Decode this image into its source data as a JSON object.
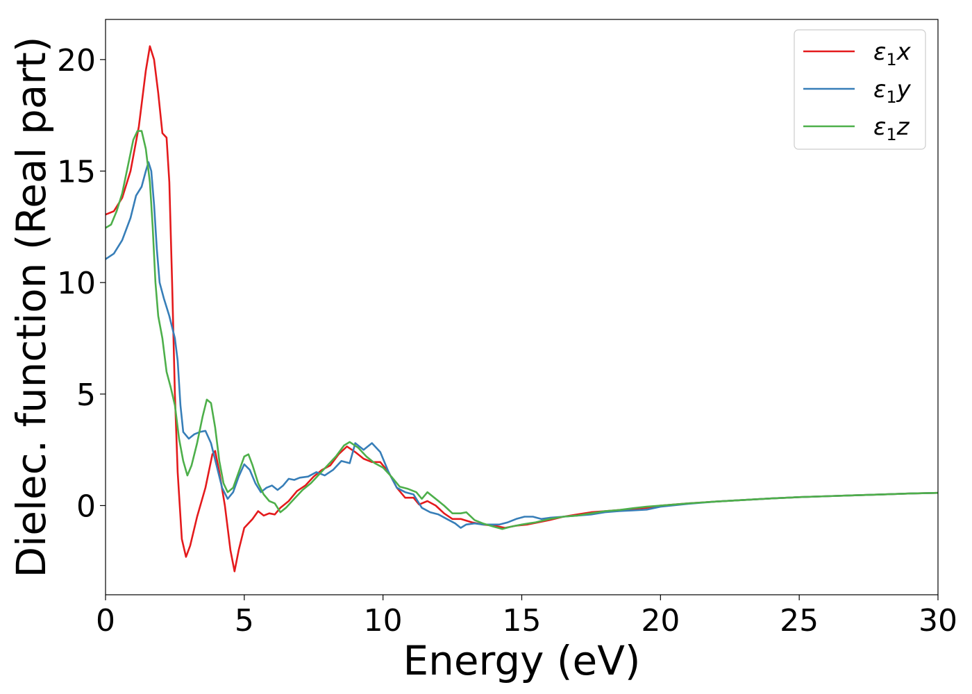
{
  "chart_data": {
    "type": "line",
    "title": "",
    "xlabel": "Energy (eV)",
    "ylabel": "Dielec. function (Real part)",
    "xlim": [
      0,
      30
    ],
    "ylim": [
      -4.0,
      21.8
    ],
    "xticks": [
      0,
      5,
      10,
      15,
      20,
      25,
      30
    ],
    "yticks": [
      0,
      5,
      10,
      15,
      20
    ],
    "grid": false,
    "legend_position": "top-right",
    "series": [
      {
        "name": "ε₁x",
        "legend_main": "ε",
        "legend_sub": "1",
        "legend_var": "x",
        "color": "#e41a1c",
        "points": [
          [
            0,
            13.05
          ],
          [
            0.3,
            13.2
          ],
          [
            0.6,
            13.8
          ],
          [
            0.9,
            15.0
          ],
          [
            1.2,
            17.0
          ],
          [
            1.45,
            19.5
          ],
          [
            1.6,
            20.6
          ],
          [
            1.75,
            20.0
          ],
          [
            1.9,
            18.5
          ],
          [
            2.05,
            16.7
          ],
          [
            2.2,
            16.5
          ],
          [
            2.3,
            14.5
          ],
          [
            2.4,
            10.0
          ],
          [
            2.5,
            5.0
          ],
          [
            2.6,
            1.5
          ],
          [
            2.75,
            -1.5
          ],
          [
            2.9,
            -2.3
          ],
          [
            3.05,
            -1.8
          ],
          [
            3.3,
            -0.5
          ],
          [
            3.6,
            0.8
          ],
          [
            3.85,
            2.3
          ],
          [
            3.95,
            2.45
          ],
          [
            4.1,
            1.5
          ],
          [
            4.3,
            0.0
          ],
          [
            4.5,
            -2.0
          ],
          [
            4.65,
            -2.95
          ],
          [
            4.8,
            -2.0
          ],
          [
            5.0,
            -1.0
          ],
          [
            5.3,
            -0.6
          ],
          [
            5.5,
            -0.25
          ],
          [
            5.7,
            -0.45
          ],
          [
            5.9,
            -0.35
          ],
          [
            6.1,
            -0.4
          ],
          [
            6.3,
            -0.1
          ],
          [
            6.6,
            0.2
          ],
          [
            6.9,
            0.65
          ],
          [
            7.2,
            0.9
          ],
          [
            7.5,
            1.3
          ],
          [
            7.8,
            1.6
          ],
          [
            8.1,
            1.8
          ],
          [
            8.4,
            2.3
          ],
          [
            8.7,
            2.65
          ],
          [
            9.0,
            2.4
          ],
          [
            9.3,
            2.1
          ],
          [
            9.6,
            1.95
          ],
          [
            9.9,
            1.95
          ],
          [
            10.2,
            1.5
          ],
          [
            10.5,
            0.8
          ],
          [
            10.8,
            0.35
          ],
          [
            11.1,
            0.35
          ],
          [
            11.3,
            0.05
          ],
          [
            11.6,
            0.2
          ],
          [
            11.9,
            0.0
          ],
          [
            12.2,
            -0.35
          ],
          [
            12.5,
            -0.6
          ],
          [
            12.8,
            -0.6
          ],
          [
            13.2,
            -0.75
          ],
          [
            13.6,
            -0.85
          ],
          [
            14.0,
            -0.9
          ],
          [
            14.4,
            -1.0
          ],
          [
            14.8,
            -0.9
          ],
          [
            15.2,
            -0.85
          ],
          [
            15.6,
            -0.75
          ],
          [
            16.0,
            -0.65
          ],
          [
            16.5,
            -0.5
          ],
          [
            17.0,
            -0.4
          ],
          [
            17.5,
            -0.3
          ],
          [
            18,
            -0.25
          ],
          [
            18.5,
            -0.2
          ],
          [
            19,
            -0.15
          ],
          [
            19.5,
            -0.1
          ],
          [
            20,
            0.0
          ],
          [
            21,
            0.1
          ],
          [
            22,
            0.18
          ],
          [
            23,
            0.25
          ],
          [
            24,
            0.32
          ],
          [
            25,
            0.38
          ],
          [
            26,
            0.42
          ],
          [
            27,
            0.46
          ],
          [
            28,
            0.5
          ],
          [
            29,
            0.54
          ],
          [
            30,
            0.57
          ]
        ]
      },
      {
        "name": "ε₁y",
        "legend_main": "ε",
        "legend_sub": "1",
        "legend_var": "y",
        "color": "#377eb8",
        "points": [
          [
            0,
            11.05
          ],
          [
            0.3,
            11.3
          ],
          [
            0.6,
            11.9
          ],
          [
            0.9,
            12.9
          ],
          [
            1.1,
            13.9
          ],
          [
            1.3,
            14.3
          ],
          [
            1.45,
            15.0
          ],
          [
            1.55,
            15.4
          ],
          [
            1.65,
            15.0
          ],
          [
            1.75,
            13.5
          ],
          [
            1.85,
            11.5
          ],
          [
            1.95,
            10.0
          ],
          [
            2.1,
            9.3
          ],
          [
            2.3,
            8.5
          ],
          [
            2.5,
            7.5
          ],
          [
            2.6,
            6.5
          ],
          [
            2.7,
            4.5
          ],
          [
            2.8,
            3.3
          ],
          [
            3.0,
            3.0
          ],
          [
            3.2,
            3.2
          ],
          [
            3.4,
            3.3
          ],
          [
            3.6,
            3.35
          ],
          [
            3.8,
            2.8
          ],
          [
            4.0,
            1.8
          ],
          [
            4.2,
            0.8
          ],
          [
            4.4,
            0.3
          ],
          [
            4.6,
            0.6
          ],
          [
            4.8,
            1.3
          ],
          [
            5.0,
            1.85
          ],
          [
            5.2,
            1.6
          ],
          [
            5.4,
            1.0
          ],
          [
            5.6,
            0.6
          ],
          [
            5.8,
            0.8
          ],
          [
            6.0,
            0.9
          ],
          [
            6.2,
            0.7
          ],
          [
            6.4,
            0.9
          ],
          [
            6.6,
            1.2
          ],
          [
            6.8,
            1.15
          ],
          [
            7.0,
            1.25
          ],
          [
            7.3,
            1.3
          ],
          [
            7.6,
            1.5
          ],
          [
            7.9,
            1.35
          ],
          [
            8.2,
            1.6
          ],
          [
            8.5,
            2.0
          ],
          [
            8.8,
            1.9
          ],
          [
            9.0,
            2.8
          ],
          [
            9.3,
            2.5
          ],
          [
            9.6,
            2.8
          ],
          [
            9.9,
            2.4
          ],
          [
            10.2,
            1.5
          ],
          [
            10.5,
            0.8
          ],
          [
            10.8,
            0.6
          ],
          [
            11.1,
            0.5
          ],
          [
            11.4,
            -0.1
          ],
          [
            11.7,
            -0.3
          ],
          [
            12.0,
            -0.4
          ],
          [
            12.3,
            -0.6
          ],
          [
            12.6,
            -0.8
          ],
          [
            12.8,
            -1.0
          ],
          [
            13.0,
            -0.85
          ],
          [
            13.3,
            -0.8
          ],
          [
            13.6,
            -0.85
          ],
          [
            13.9,
            -0.85
          ],
          [
            14.2,
            -0.85
          ],
          [
            14.5,
            -0.75
          ],
          [
            14.8,
            -0.6
          ],
          [
            15.1,
            -0.5
          ],
          [
            15.4,
            -0.5
          ],
          [
            15.7,
            -0.6
          ],
          [
            16.0,
            -0.55
          ],
          [
            16.5,
            -0.5
          ],
          [
            17,
            -0.45
          ],
          [
            17.5,
            -0.4
          ],
          [
            18,
            -0.3
          ],
          [
            18.5,
            -0.25
          ],
          [
            19,
            -0.22
          ],
          [
            19.5,
            -0.18
          ],
          [
            20,
            -0.05
          ],
          [
            21,
            0.08
          ],
          [
            22,
            0.18
          ],
          [
            23,
            0.25
          ],
          [
            24,
            0.32
          ],
          [
            25,
            0.38
          ],
          [
            26,
            0.42
          ],
          [
            27,
            0.46
          ],
          [
            28,
            0.5
          ],
          [
            29,
            0.54
          ],
          [
            30,
            0.57
          ]
        ]
      },
      {
        "name": "ε₁z",
        "legend_main": "ε",
        "legend_sub": "1",
        "legend_var": "z",
        "color": "#4daf4a",
        "points": [
          [
            0,
            12.45
          ],
          [
            0.2,
            12.6
          ],
          [
            0.4,
            13.2
          ],
          [
            0.6,
            14.0
          ],
          [
            0.8,
            15.2
          ],
          [
            1.0,
            16.4
          ],
          [
            1.15,
            16.8
          ],
          [
            1.3,
            16.8
          ],
          [
            1.45,
            16.0
          ],
          [
            1.6,
            14.5
          ],
          [
            1.7,
            12.5
          ],
          [
            1.8,
            10.0
          ],
          [
            1.9,
            8.5
          ],
          [
            2.05,
            7.5
          ],
          [
            2.2,
            6.0
          ],
          [
            2.35,
            5.3
          ],
          [
            2.5,
            4.5
          ],
          [
            2.65,
            3.0
          ],
          [
            2.8,
            2.0
          ],
          [
            2.95,
            1.35
          ],
          [
            3.1,
            1.8
          ],
          [
            3.3,
            2.8
          ],
          [
            3.5,
            4.0
          ],
          [
            3.65,
            4.75
          ],
          [
            3.8,
            4.6
          ],
          [
            3.95,
            3.5
          ],
          [
            4.1,
            2.0
          ],
          [
            4.25,
            1.0
          ],
          [
            4.4,
            0.6
          ],
          [
            4.6,
            0.8
          ],
          [
            4.8,
            1.5
          ],
          [
            5.0,
            2.2
          ],
          [
            5.15,
            2.3
          ],
          [
            5.3,
            1.8
          ],
          [
            5.5,
            1.0
          ],
          [
            5.7,
            0.5
          ],
          [
            5.9,
            0.2
          ],
          [
            6.1,
            0.1
          ],
          [
            6.3,
            -0.3
          ],
          [
            6.5,
            -0.1
          ],
          [
            6.8,
            0.3
          ],
          [
            7.1,
            0.7
          ],
          [
            7.4,
            1.0
          ],
          [
            7.7,
            1.4
          ],
          [
            8.0,
            1.8
          ],
          [
            8.3,
            2.2
          ],
          [
            8.6,
            2.7
          ],
          [
            8.8,
            2.85
          ],
          [
            9.1,
            2.6
          ],
          [
            9.4,
            2.2
          ],
          [
            9.7,
            1.9
          ],
          [
            10.0,
            1.7
          ],
          [
            10.3,
            1.3
          ],
          [
            10.6,
            0.85
          ],
          [
            10.9,
            0.75
          ],
          [
            11.2,
            0.6
          ],
          [
            11.4,
            0.3
          ],
          [
            11.6,
            0.6
          ],
          [
            11.9,
            0.3
          ],
          [
            12.2,
            0.0
          ],
          [
            12.5,
            -0.35
          ],
          [
            12.8,
            -0.35
          ],
          [
            13.0,
            -0.3
          ],
          [
            13.3,
            -0.65
          ],
          [
            13.6,
            -0.8
          ],
          [
            14.0,
            -0.95
          ],
          [
            14.3,
            -1.05
          ],
          [
            14.6,
            -0.95
          ],
          [
            15.0,
            -0.85
          ],
          [
            15.5,
            -0.75
          ],
          [
            16.0,
            -0.6
          ],
          [
            16.5,
            -0.5
          ],
          [
            17,
            -0.45
          ],
          [
            17.5,
            -0.35
          ],
          [
            18,
            -0.25
          ],
          [
            18.5,
            -0.2
          ],
          [
            19,
            -0.12
          ],
          [
            19.5,
            -0.05
          ],
          [
            20,
            0.0
          ],
          [
            21,
            0.1
          ],
          [
            22,
            0.18
          ],
          [
            23,
            0.25
          ],
          [
            24,
            0.32
          ],
          [
            25,
            0.38
          ],
          [
            26,
            0.42
          ],
          [
            27,
            0.46
          ],
          [
            28,
            0.5
          ],
          [
            29,
            0.54
          ],
          [
            30,
            0.57
          ]
        ]
      }
    ]
  }
}
